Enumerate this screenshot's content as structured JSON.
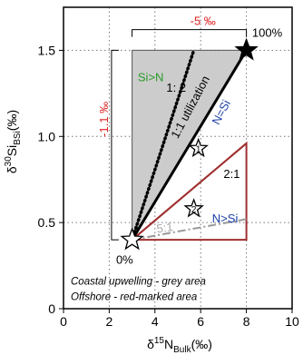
{
  "chart_data": {
    "type": "line",
    "title": "",
    "xlabel": {
      "main": "δ",
      "sup": "15",
      "sub_letter": "N",
      "sub": "Bulk",
      "unit": "(‰)"
    },
    "ylabel": {
      "main": "δ",
      "sup": "30",
      "sub_letter": "Si",
      "sub": "BSi",
      "unit": "(‰)"
    },
    "xlim": [
      0,
      10
    ],
    "ylim": [
      0,
      1.75
    ],
    "x_ticks": [
      0,
      2,
      4,
      6,
      8,
      10
    ],
    "y_ticks": [
      0,
      0.5,
      1.0,
      1.5
    ],
    "x_tick_labels": [
      "0",
      "2",
      "4",
      "6",
      "8",
      "10"
    ],
    "y_tick_labels": [
      "0",
      "0.5",
      "1.0",
      "1.5"
    ],
    "grid": "dotted vertical at x=2, 4, 6, 8; dotted horizontal at y=0.5, 1.0, 1.5",
    "regions": [
      {
        "name": "Coastal upwelling",
        "fill": "#cccccc",
        "points": [
          [
            3,
            0.4
          ],
          [
            3,
            1.5
          ],
          [
            8,
            1.5
          ]
        ]
      },
      {
        "name": "Offshore",
        "stroke": "#a03030",
        "points": [
          [
            3,
            0.4
          ],
          [
            8,
            0.96
          ],
          [
            8,
            0.4
          ]
        ]
      }
    ],
    "series": [
      {
        "label": "1:1 utilization",
        "style": "solid",
        "color": "#000000",
        "x": [
          3,
          8
        ],
        "y": [
          0.4,
          1.5
        ]
      },
      {
        "label": "1: 2",
        "style": "dotted",
        "color": "#000000",
        "x": [
          3,
          5.7
        ],
        "y": [
          0.4,
          1.5
        ]
      },
      {
        "label": "2:1",
        "style": "solid",
        "color": "#a03030",
        "x": [
          3,
          8
        ],
        "y": [
          0.4,
          0.96
        ]
      },
      {
        "label": "5:1",
        "style": "dashdot",
        "color": "#999999",
        "x": [
          3,
          8
        ],
        "y": [
          0.4,
          0.52
        ]
      }
    ],
    "markers": [
      {
        "label": "0%",
        "x": 3,
        "y": 0.4,
        "marker": "star-outline",
        "size": "large"
      },
      {
        "label": "100%",
        "x": 8,
        "y": 1.5,
        "marker": "star-filled",
        "size": "large"
      },
      {
        "label": "1",
        "x": 5.9,
        "y": 0.93,
        "marker": "star-outline",
        "size": "medium"
      },
      {
        "label": "2",
        "x": 5.7,
        "y": 0.58,
        "marker": "star-outline",
        "size": "medium"
      }
    ],
    "annotations": [
      {
        "text": "-5 ‰",
        "color": "#e02020",
        "type": "horizontal-bracket",
        "x_range": [
          3,
          8
        ],
        "at_y": 1.62
      },
      {
        "text": "-1.1 ‰",
        "color": "#e02020",
        "type": "vertical-bracket",
        "y_range": [
          0.4,
          1.5
        ],
        "at_x": 2.1
      },
      {
        "text": "Si>N",
        "color": "#2a9a2a"
      },
      {
        "text": "N>Si",
        "color": "#1a3ea8"
      },
      {
        "text": "N=Si",
        "color": "#1a3ea8"
      }
    ],
    "notes": [
      "Coastal upwelling - grey area",
      "Offshore - red-marked area"
    ]
  }
}
